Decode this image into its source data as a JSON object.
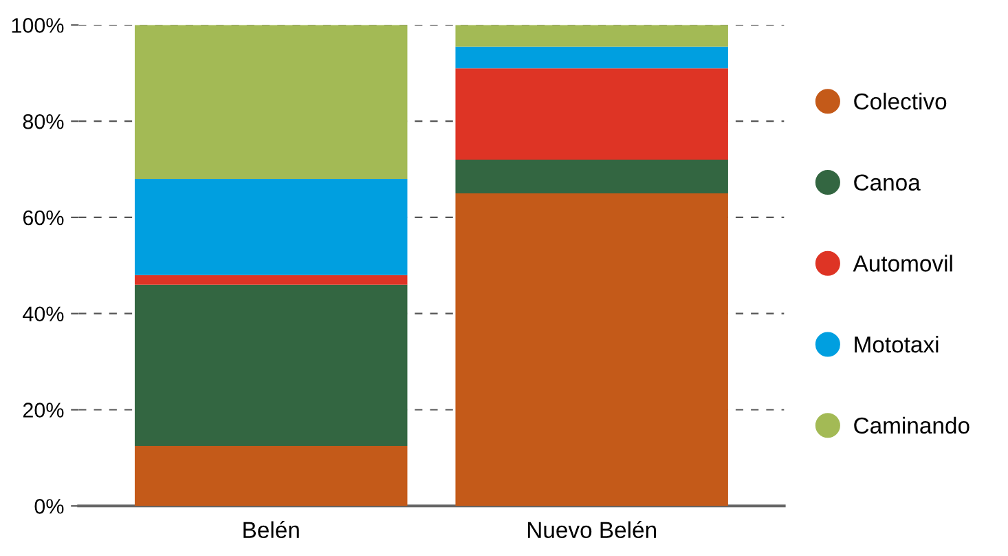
{
  "chart_data": {
    "type": "bar",
    "stacked": true,
    "categories": [
      "Belén",
      "Nuevo Belén"
    ],
    "series": [
      {
        "name": "Colectivo",
        "color": "#c45a19",
        "values": [
          12.5,
          65
        ]
      },
      {
        "name": "Canoa",
        "color": "#336641",
        "values": [
          33.5,
          7
        ]
      },
      {
        "name": "Automovil",
        "color": "#de3425",
        "values": [
          2,
          19
        ]
      },
      {
        "name": "Mototaxi",
        "color": "#009fe0",
        "values": [
          20,
          4.5
        ]
      },
      {
        "name": "Caminando",
        "color": "#a3ba55",
        "values": [
          32,
          4.5
        ]
      }
    ],
    "ylim": [
      0,
      100
    ],
    "yticks": [
      {
        "value": 0,
        "label": "0%"
      },
      {
        "value": 20,
        "label": "20%"
      },
      {
        "value": 40,
        "label": "40%"
      },
      {
        "value": 60,
        "label": "60%"
      },
      {
        "value": 80,
        "label": "80%"
      },
      {
        "value": 100,
        "label": "100%"
      }
    ],
    "grid": "y",
    "legend": "right"
  }
}
